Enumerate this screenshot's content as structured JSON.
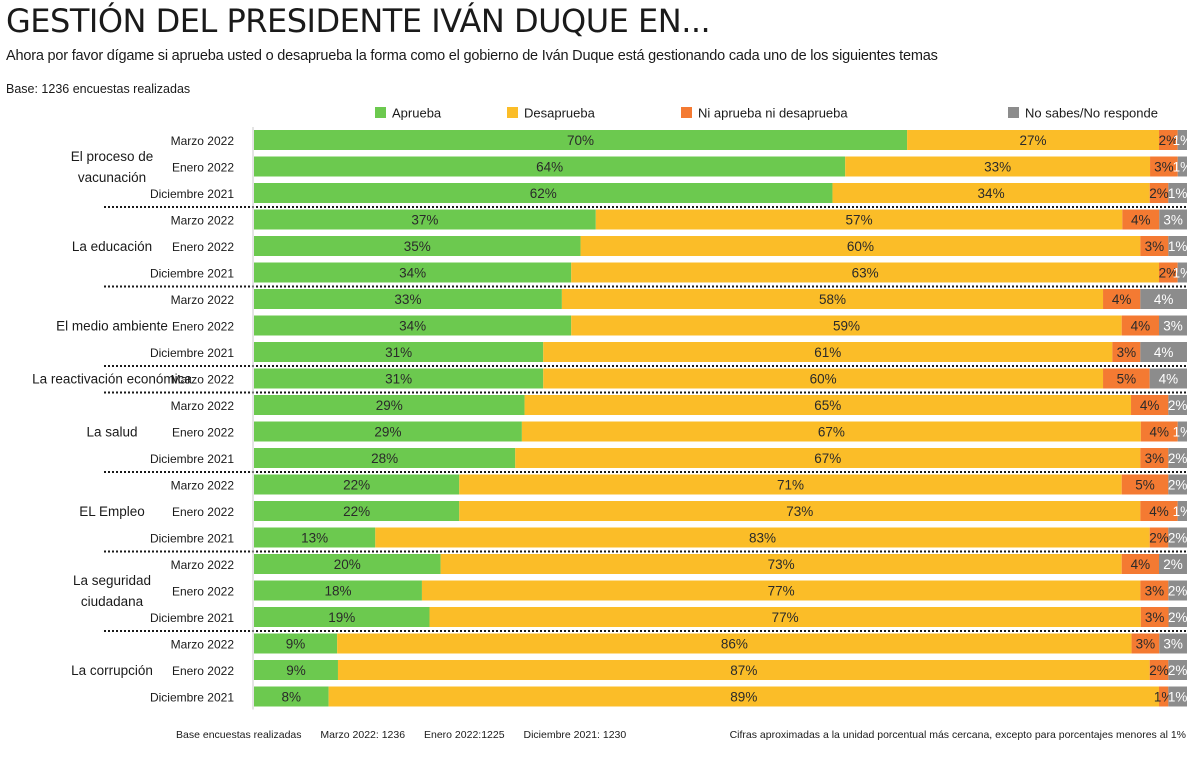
{
  "title": "GESTIÓN DEL PRESIDENTE IVÁN DUQUE EN...",
  "subtitle": "Ahora por favor dígame si aprueba usted o desaprueba la forma como el gobierno de Iván Duque está gestionando cada uno de los siguientes temas",
  "base_note": "Base: 1236 encuestas realizadas",
  "footer": {
    "label": "Base encuestas realizadas",
    "bases": [
      "Marzo 2022: 1236",
      "Enero 2022:1225",
      "Diciembre 2021: 1230"
    ],
    "note": "Cifras aproximadas a la unidad porcentual más cercana, excepto para porcentajes menores al 1%"
  },
  "colors": {
    "Aprueba": "#6cc94f",
    "Desaprueba": "#fbbd28",
    "Ni aprueba ni desaprueba": "#f47a32",
    "No sabes/No responde": "#8c8c8c"
  },
  "chart_data": {
    "type": "bar",
    "orientation": "horizontal",
    "stacked": true,
    "legend_position": "top",
    "series_names": [
      "Aprueba",
      "Desaprueba",
      "Ni aprueba ni desaprueba",
      "No sabes/No responde"
    ],
    "groups": [
      {
        "topic": [
          "El proceso de",
          "vacunación"
        ],
        "rows": [
          {
            "period": "Marzo 2022",
            "values": [
              70,
              27,
              2,
              1
            ]
          },
          {
            "period": "Enero 2022",
            "values": [
              64,
              33,
              3,
              1
            ]
          },
          {
            "period": "Diciembre 2021",
            "values": [
              62,
              34,
              2,
              1
            ]
          }
        ]
      },
      {
        "topic": [
          "La educación"
        ],
        "rows": [
          {
            "period": "Marzo 2022",
            "values": [
              37,
              57,
              4,
              3
            ]
          },
          {
            "period": "Enero 2022",
            "values": [
              35,
              60,
              3,
              1
            ]
          },
          {
            "period": "Diciembre 2021",
            "values": [
              34,
              63,
              2,
              1
            ]
          }
        ]
      },
      {
        "topic": [
          "El medio ambiente"
        ],
        "rows": [
          {
            "period": "Marzo 2022",
            "values": [
              33,
              58,
              4,
              4
            ]
          },
          {
            "period": "Enero 2022",
            "values": [
              34,
              59,
              4,
              3
            ]
          },
          {
            "period": "Diciembre 2021",
            "values": [
              31,
              61,
              3,
              4
            ]
          }
        ]
      },
      {
        "topic": [
          "La reactivación económica"
        ],
        "rows": [
          {
            "period": "Marzo 2022",
            "values": [
              31,
              60,
              5,
              4
            ]
          }
        ]
      },
      {
        "topic": [
          "La salud"
        ],
        "rows": [
          {
            "period": "Marzo 2022",
            "values": [
              29,
              65,
              4,
              2
            ]
          },
          {
            "period": "Enero 2022",
            "values": [
              29,
              67,
              4,
              1
            ]
          },
          {
            "period": "Diciembre 2021",
            "values": [
              28,
              67,
              3,
              2
            ]
          }
        ]
      },
      {
        "topic": [
          "EL Empleo"
        ],
        "rows": [
          {
            "period": "Marzo 2022",
            "values": [
              22,
              71,
              5,
              2
            ]
          },
          {
            "period": "Enero 2022",
            "values": [
              22,
              73,
              4,
              1
            ]
          },
          {
            "period": "Diciembre 2021",
            "values": [
              13,
              83,
              2,
              2
            ]
          }
        ]
      },
      {
        "topic": [
          "La seguridad",
          "ciudadana"
        ],
        "rows": [
          {
            "period": "Marzo 2022",
            "values": [
              20,
              73,
              4,
              2
            ]
          },
          {
            "period": "Enero 2022",
            "values": [
              18,
              77,
              3,
              2
            ]
          },
          {
            "period": "Diciembre 2021",
            "values": [
              19,
              77,
              3,
              2
            ]
          }
        ]
      },
      {
        "topic": [
          "La corrupción"
        ],
        "rows": [
          {
            "period": "Marzo 2022",
            "values": [
              9,
              86,
              3,
              3
            ]
          },
          {
            "period": "Enero 2022",
            "values": [
              9,
              87,
              2,
              2
            ]
          },
          {
            "period": "Diciembre 2021",
            "values": [
              8,
              89,
              1,
              1
            ]
          }
        ]
      }
    ]
  }
}
